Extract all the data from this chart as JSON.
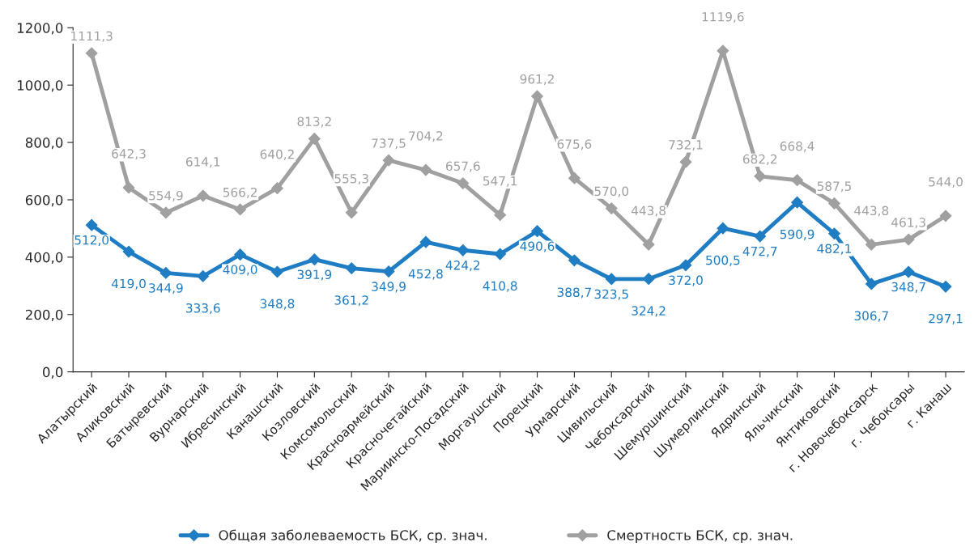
{
  "chart_data": {
    "type": "line",
    "categories": [
      "Алатырский",
      "Аликовский",
      "Батыревский",
      "Вурнарский",
      "Ибресинский",
      "Канашский",
      "Козловский",
      "Комсомольский",
      "Красноармейский",
      "Красночетайский",
      "Мариинско-Посадский",
      "Моргаушский",
      "Порецкий",
      "Урмарский",
      "Цивильский",
      "Чебоксарский",
      "Шемуршинский",
      "Шумерлинский",
      "Ядринский",
      "Яльчикский",
      "Янтиковский",
      "г. Новочебоксарск",
      "г. Чебоксары",
      "г. Канаш"
    ],
    "series": [
      {
        "name": "Общая заболеваемость БСК, ср. знач.",
        "color": "#1f7dc3",
        "value_labels": [
          "512,0",
          "419,0",
          "344,9",
          "333,6",
          "409,0",
          "348,8",
          "391,9",
          "361,2",
          "349,9",
          "452,8",
          "424,2",
          "410,8",
          "490,6",
          "388,7",
          "323,5",
          "324,2",
          "372,0",
          "500,5",
          "472,7",
          "590,9",
          "482,1",
          "306,7",
          "348,7",
          "297,1"
        ],
        "values": [
          512.0,
          419.0,
          344.9,
          333.6,
          409.0,
          348.8,
          391.9,
          361.2,
          349.9,
          452.8,
          424.2,
          410.8,
          490.6,
          388.7,
          323.5,
          324.2,
          372.0,
          500.5,
          472.7,
          590.9,
          482.1,
          306.7,
          348.7,
          297.1
        ]
      },
      {
        "name": "Смертность БСК, ср. знач.",
        "color": "#a0a0a0",
        "value_labels": [
          "1111,3",
          "642,3",
          "554,9",
          "614,1",
          "566,2",
          "640,2",
          "813,2",
          "555,3",
          "737,5",
          "704,2",
          "657,6",
          "547,1",
          "961,2",
          "675,6",
          "570,0",
          "443,8",
          "732,1",
          "1119,6",
          "682,2",
          "668,4",
          "587,5",
          "443,8",
          "461,3",
          "544,0"
        ],
        "values": [
          1111.3,
          642.3,
          554.9,
          614.1,
          566.2,
          640.2,
          813.2,
          555.3,
          737.5,
          704.2,
          657.6,
          547.1,
          961.2,
          675.6,
          570.0,
          443.8,
          732.1,
          1119.6,
          682.2,
          668.4,
          587.5,
          443.8,
          461.3,
          544.0
        ]
      }
    ],
    "ylim": [
      0,
      1200
    ],
    "yticks": [
      {
        "value": 0,
        "label": "0,0"
      },
      {
        "value": 200,
        "label": "200,0"
      },
      {
        "value": 400,
        "label": "400,0"
      },
      {
        "value": 600,
        "label": "600,0"
      },
      {
        "value": 800,
        "label": "800,0"
      },
      {
        "value": 1000,
        "label": "1000,0"
      },
      {
        "value": 1200,
        "label": "1200,0"
      }
    ],
    "marker": "diamond",
    "line_style": "solid",
    "legend": "bottom",
    "grid": false
  }
}
